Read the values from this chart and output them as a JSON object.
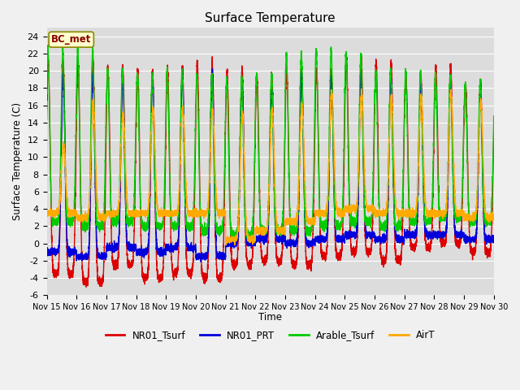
{
  "title": "Surface Temperature",
  "ylabel": "Surface Temperature (C)",
  "xlabel": "Time",
  "ylim": [
    -6,
    25
  ],
  "yticks": [
    -6,
    -4,
    -2,
    0,
    2,
    4,
    6,
    8,
    10,
    12,
    14,
    16,
    18,
    20,
    22,
    24
  ],
  "n_days": 15,
  "start_day": 15,
  "series": {
    "NR01_Tsurf": {
      "color": "#dd0000"
    },
    "NR01_PRT": {
      "color": "#0000dd"
    },
    "Arable_Tsurf": {
      "color": "#00cc00"
    },
    "AirT": {
      "color": "#ffaa00"
    }
  },
  "background_color": "#e8e8e8",
  "plot_bg_color": "#dcdcdc",
  "grid_color": "#ffffff",
  "annotation_text": "BC_met",
  "annotation_bg": "#ffffcc",
  "annotation_border": "#999900",
  "fig_bg": "#f0f0f0"
}
